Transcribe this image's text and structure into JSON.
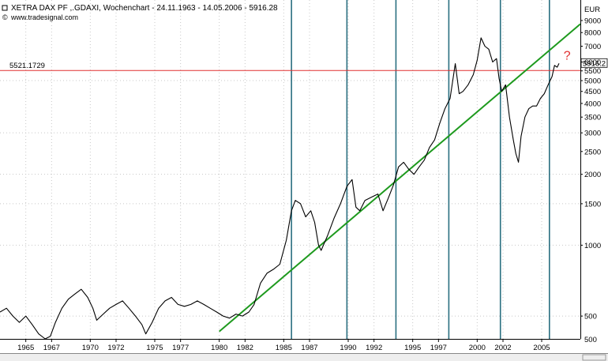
{
  "header": {
    "title": "XETRA DAX PF ,.GDAXI, Wochenchart - 24.11.1963 - 14.05.2006 - 5916.28",
    "source": "www.tradesignal.com"
  },
  "colors": {
    "background": "#ffffff",
    "price_line": "#000000",
    "trendline": "#1e9a1e",
    "vertical_markers": "#2a6f80",
    "horizontal_level": "#e03030",
    "question_mark": "#e03030",
    "grid": "#c8c8c8"
  },
  "chart_data": {
    "type": "line",
    "title": "XETRA DAX PF ,.GDAXI, Wochenchart - 24.11.1963 - 14.05.2006 - 5916.28",
    "ylabel": "EUR",
    "yscale": "log",
    "ylim": [
      400,
      11000
    ],
    "xlim": [
      1963.0,
      2008.0
    ],
    "grid": true,
    "x_tick_labels": [
      "1965",
      "1967",
      "1970",
      "1972",
      "1975",
      "1977",
      "1980",
      "1982",
      "1985",
      "1987",
      "1990",
      "1992",
      "1995",
      "1997",
      "2000",
      "2002",
      "2005"
    ],
    "x_tick_values": [
      1965,
      1967,
      1970,
      1972,
      1975,
      1977,
      1980,
      1982,
      1985,
      1987,
      1990,
      1992,
      1995,
      1997,
      2000,
      2002,
      2005
    ],
    "y_tick_labels": [
      "9000",
      "8000",
      "7000",
      "6000",
      "5500",
      "5000",
      "4500",
      "4000",
      "3500",
      "3000",
      "2500",
      "2000",
      "1500",
      "1000",
      "500"
    ],
    "y_tick_values": [
      9000,
      8000,
      7000,
      6000,
      5500,
      5000,
      4500,
      4000,
      3500,
      3000,
      2500,
      2000,
      1500,
      1000,
      500
    ],
    "y_tick_partial": "500",
    "last_value_label": "5916.2",
    "series": [
      {
        "type": "line",
        "x": [
          1963.0,
          1963.5,
          1964.0,
          1964.5,
          1965.0,
          1965.5,
          1966.0,
          1966.5,
          1966.9,
          1967.3,
          1967.8,
          1968.3,
          1968.8,
          1969.3,
          1969.8,
          1970.2,
          1970.5,
          1971.0,
          1971.5,
          1972.0,
          1972.5,
          1973.0,
          1973.5,
          1974.0,
          1974.3,
          1974.8,
          1975.3,
          1975.8,
          1976.3,
          1976.8,
          1977.3,
          1977.8,
          1978.3,
          1978.8,
          1979.3,
          1979.8,
          1980.3,
          1980.8,
          1981.3,
          1981.8,
          1982.3,
          1982.7,
          1983.2,
          1983.7,
          1984.2,
          1984.7,
          1985.2,
          1985.6,
          1985.9,
          1986.3,
          1986.7,
          1987.1,
          1987.4,
          1987.7,
          1987.9,
          1988.4,
          1988.9,
          1989.4,
          1989.9,
          1990.3,
          1990.6,
          1990.9,
          1991.3,
          1991.8,
          1992.3,
          1992.7,
          1993.1,
          1993.5,
          1993.9,
          1994.3,
          1994.7,
          1995.1,
          1995.5,
          1995.9,
          1996.3,
          1996.7,
          1997.1,
          1997.5,
          1997.9,
          1998.3,
          1998.6,
          1998.9,
          1999.3,
          1999.7,
          2000.0,
          2000.3,
          2000.6,
          2000.9,
          2001.2,
          2001.5,
          2001.7,
          2001.9,
          2002.2,
          2002.5,
          2002.8,
          2003.0,
          2003.2,
          2003.4,
          2003.7,
          2004.0,
          2004.3,
          2004.6,
          2004.9,
          2005.2,
          2005.5,
          2005.8,
          2006.0,
          2006.2,
          2006.35
        ],
        "y": [
          520,
          540,
          500,
          470,
          500,
          460,
          420,
          400,
          410,
          470,
          540,
          590,
          620,
          650,
          600,
          540,
          480,
          510,
          540,
          560,
          580,
          540,
          500,
          460,
          420,
          470,
          540,
          580,
          600,
          560,
          550,
          560,
          580,
          560,
          540,
          520,
          500,
          490,
          510,
          500,
          520,
          560,
          690,
          760,
          790,
          830,
          1050,
          1400,
          1550,
          1500,
          1320,
          1400,
          1250,
          1000,
          950,
          1100,
          1300,
          1500,
          1780,
          1900,
          1450,
          1400,
          1550,
          1600,
          1650,
          1400,
          1580,
          1800,
          2150,
          2250,
          2100,
          2000,
          2150,
          2300,
          2600,
          2800,
          3300,
          3800,
          4200,
          5900,
          4400,
          4500,
          4800,
          5300,
          6100,
          7600,
          7000,
          6800,
          6000,
          6200,
          5100,
          4500,
          4800,
          3500,
          2800,
          2450,
          2250,
          2900,
          3500,
          3800,
          3900,
          3900,
          4200,
          4400,
          4800,
          5200,
          5800,
          5700,
          5916
        ]
      }
    ],
    "trendline": {
      "x": [
        1980.0,
        2008.0
      ],
      "y": [
        430,
        8700
      ]
    },
    "vertical_markers_x": [
      1985.6,
      1989.9,
      1993.7,
      1997.8,
      2001.8,
      2005.6
    ],
    "horizontal_level": {
      "value": 5521.1729,
      "label": "5521.1729"
    },
    "annotation": {
      "text": "?",
      "x": 2006.7,
      "y": 6150
    }
  }
}
